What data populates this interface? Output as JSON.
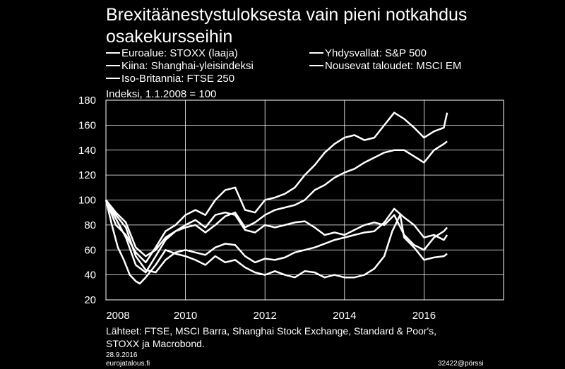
{
  "title_line1": "Brexitäänestystuloksesta vain pieni notkahdus",
  "title_line2": "osakekursseihin",
  "index_note": "Indeksi, 1.1.2008 = 100",
  "source_line1": "Lähteet: FTSE, MSCI Barra, Shanghai Stock Exchange, Standard & Poor's,",
  "source_line2": "STOXX ja Macrobond.",
  "date": "28.9.2016",
  "site": "eurojatalous.fi",
  "code": "32422@pörssi",
  "chart_data": {
    "type": "line",
    "title": "Brexitäänestystuloksesta vain pieni notkahdus osakekursseihin",
    "ylabel": "Indeksi, 1.1.2008 = 100",
    "xlim": [
      2008,
      2018
    ],
    "ylim": [
      20,
      180
    ],
    "xticks": [
      2008,
      2010,
      2012,
      2014,
      2016
    ],
    "xtick_labels": [
      "2008",
      "2010",
      "2012",
      "2014",
      "2016"
    ],
    "yticks": [
      20,
      40,
      60,
      80,
      100,
      120,
      140,
      160,
      180
    ],
    "ytick_labels": [
      "20",
      "40",
      "60",
      "80",
      "100",
      "120",
      "140",
      "160",
      "180"
    ],
    "grid": true,
    "line_color": "#ffffff",
    "series": [
      {
        "name": "Euroalue: STOXX (laaja)",
        "x": [
          2008.0,
          2008.25,
          2008.5,
          2008.75,
          2009.0,
          2009.25,
          2009.5,
          2009.75,
          2010.0,
          2010.25,
          2010.5,
          2010.75,
          2011.0,
          2011.25,
          2011.5,
          2011.75,
          2012.0,
          2012.25,
          2012.5,
          2012.75,
          2013.0,
          2013.25,
          2013.5,
          2013.75,
          2014.0,
          2014.25,
          2014.5,
          2014.75,
          2015.0,
          2015.25,
          2015.5,
          2015.75,
          2016.0,
          2016.25,
          2016.5,
          2016.58
        ],
        "values": [
          100,
          88,
          78,
          55,
          44,
          42,
          52,
          58,
          60,
          58,
          56,
          62,
          65,
          64,
          55,
          50,
          53,
          52,
          54,
          58,
          60,
          62,
          65,
          68,
          70,
          72,
          74,
          75,
          82,
          93,
          86,
          80,
          70,
          72,
          68,
          72
        ]
      },
      {
        "name": "Yhdysvallat: S&P 500",
        "x": [
          2008.0,
          2008.25,
          2008.5,
          2008.75,
          2009.0,
          2009.25,
          2009.5,
          2009.75,
          2010.0,
          2010.25,
          2010.5,
          2010.75,
          2011.0,
          2011.25,
          2011.5,
          2011.75,
          2012.0,
          2012.25,
          2012.5,
          2012.75,
          2013.0,
          2013.25,
          2013.5,
          2013.75,
          2014.0,
          2014.25,
          2014.5,
          2014.75,
          2015.0,
          2015.25,
          2015.5,
          2015.75,
          2016.0,
          2016.25,
          2016.5,
          2016.58
        ],
        "values": [
          100,
          90,
          82,
          62,
          55,
          60,
          70,
          75,
          78,
          80,
          74,
          80,
          87,
          90,
          78,
          82,
          88,
          92,
          94,
          96,
          100,
          108,
          112,
          118,
          122,
          125,
          130,
          134,
          138,
          140,
          140,
          135,
          130,
          140,
          145,
          147
        ]
      },
      {
        "name": "Kiina: Shanghai-yleisindeksi",
        "x": [
          2008.0,
          2008.15,
          2008.3,
          2008.45,
          2008.6,
          2008.75,
          2008.85,
          2009.0,
          2009.25,
          2009.5,
          2009.75,
          2010.0,
          2010.25,
          2010.5,
          2010.75,
          2011.0,
          2011.25,
          2011.5,
          2011.75,
          2012.0,
          2012.25,
          2012.5,
          2012.75,
          2013.0,
          2013.25,
          2013.5,
          2013.75,
          2014.0,
          2014.25,
          2014.5,
          2014.75,
          2015.0,
          2015.2,
          2015.4,
          2015.5,
          2015.75,
          2016.0,
          2016.25,
          2016.5,
          2016.58
        ],
        "values": [
          100,
          80,
          62,
          52,
          40,
          35,
          33,
          38,
          48,
          60,
          57,
          55,
          52,
          48,
          55,
          50,
          52,
          46,
          42,
          40,
          43,
          40,
          38,
          43,
          42,
          38,
          40,
          38,
          38,
          40,
          45,
          55,
          75,
          88,
          70,
          62,
          52,
          54,
          55,
          57
        ]
      },
      {
        "name": "Nousevat taloudet: MSCI EM",
        "x": [
          2008.0,
          2008.25,
          2008.5,
          2008.75,
          2009.0,
          2009.25,
          2009.5,
          2009.75,
          2010.0,
          2010.25,
          2010.5,
          2010.75,
          2011.0,
          2011.25,
          2011.5,
          2011.75,
          2012.0,
          2012.25,
          2012.5,
          2012.75,
          2013.0,
          2013.25,
          2013.5,
          2013.75,
          2014.0,
          2014.25,
          2014.5,
          2014.75,
          2015.0,
          2015.25,
          2015.5,
          2015.75,
          2016.0,
          2016.25,
          2016.5,
          2016.58
        ],
        "values": [
          100,
          85,
          70,
          48,
          42,
          55,
          68,
          75,
          80,
          84,
          78,
          88,
          90,
          88,
          76,
          74,
          80,
          78,
          80,
          82,
          83,
          78,
          72,
          74,
          72,
          76,
          80,
          82,
          80,
          88,
          72,
          64,
          60,
          70,
          75,
          78
        ]
      },
      {
        "name": "Iso-Britannia: FTSE 250",
        "x": [
          2008.0,
          2008.25,
          2008.5,
          2008.75,
          2009.0,
          2009.25,
          2009.5,
          2009.75,
          2010.0,
          2010.25,
          2010.5,
          2010.75,
          2011.0,
          2011.25,
          2011.5,
          2011.75,
          2012.0,
          2012.25,
          2012.5,
          2012.75,
          2013.0,
          2013.25,
          2013.5,
          2013.75,
          2014.0,
          2014.25,
          2014.5,
          2014.75,
          2015.0,
          2015.25,
          2015.5,
          2015.75,
          2016.0,
          2016.25,
          2016.5,
          2016.58
        ],
        "values": [
          100,
          80,
          72,
          58,
          50,
          62,
          75,
          80,
          88,
          92,
          88,
          100,
          108,
          110,
          92,
          90,
          100,
          102,
          105,
          110,
          120,
          128,
          138,
          145,
          150,
          152,
          148,
          150,
          160,
          170,
          165,
          158,
          150,
          155,
          158,
          170
        ]
      }
    ]
  }
}
